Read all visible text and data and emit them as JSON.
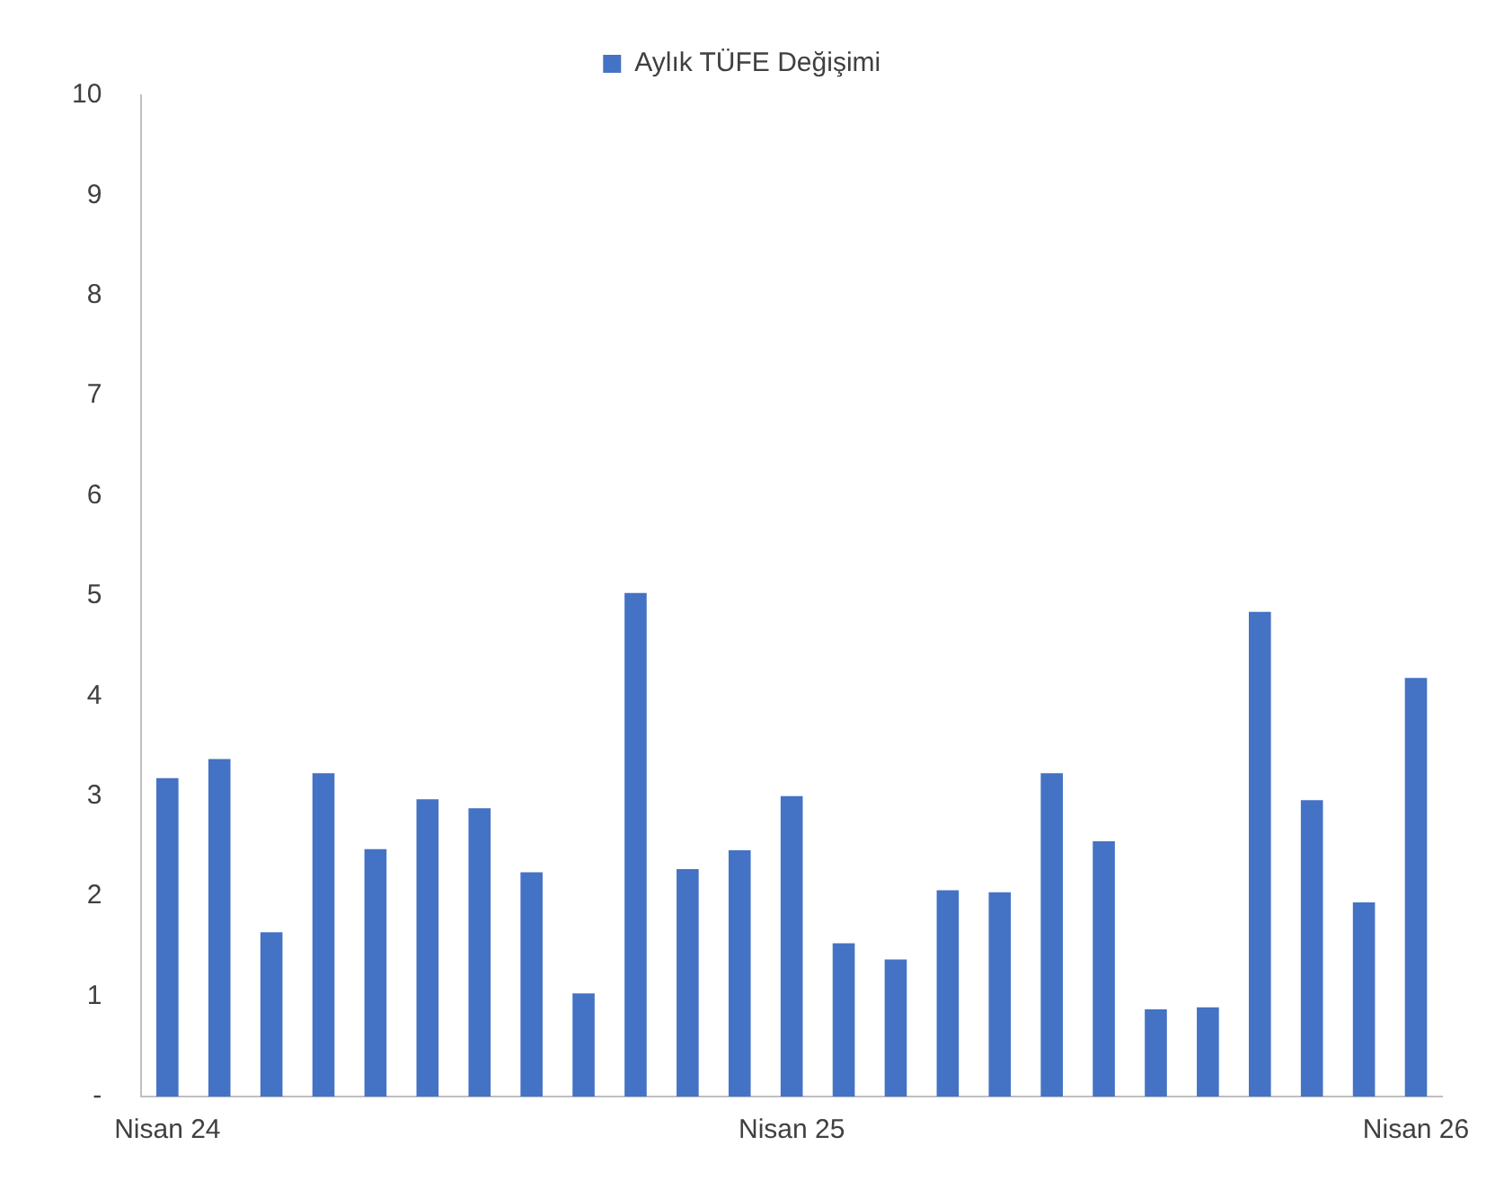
{
  "chart_data": {
    "type": "bar",
    "categories": [
      "Nisan 24",
      null,
      null,
      null,
      null,
      null,
      null,
      null,
      null,
      null,
      null,
      null,
      "Nisan 25",
      null,
      null,
      null,
      null,
      null,
      null,
      null,
      null,
      null,
      null,
      null,
      "Nisan 26"
    ],
    "series": [
      {
        "name": "Aylık TÜFE Değişimi",
        "color": "#4472c4",
        "values": [
          3.18,
          3.37,
          1.64,
          3.23,
          2.47,
          2.97,
          2.88,
          2.24,
          1.03,
          5.03,
          2.27,
          2.46,
          3.0,
          1.53,
          1.37,
          2.06,
          2.04,
          3.23,
          2.55,
          0.87,
          0.89,
          4.84,
          2.96,
          1.94,
          4.18
        ]
      }
    ],
    "ylim": [
      0,
      10
    ],
    "yticks": [
      {
        "value": 0,
        "label": "-"
      },
      1,
      2,
      3,
      4,
      5,
      6,
      7,
      8,
      9,
      10
    ],
    "grid": false,
    "legend": "top"
  }
}
